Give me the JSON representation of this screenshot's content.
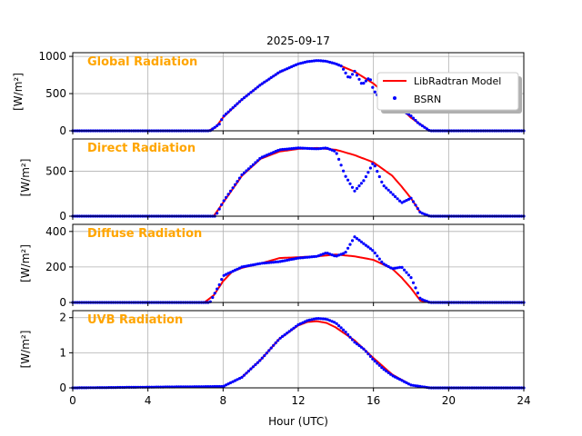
{
  "chart_data": {
    "title": "2025-09-17",
    "xlabel": "Hour (UTC)",
    "xlim": [
      0,
      24
    ],
    "xticks": [
      0,
      4,
      8,
      12,
      16,
      20,
      24
    ],
    "legend": {
      "placement": "top-right of first panel",
      "entries": [
        {
          "label": "LibRadtran Model",
          "color": "#ff0000",
          "style": "line"
        },
        {
          "label": "BSRN",
          "color": "#0000ff",
          "style": "dot"
        }
      ]
    },
    "panels": [
      {
        "type": "line+scatter",
        "label": "Global Radiation",
        "ylabel": "[W/m²]",
        "ylim": [
          0,
          1050
        ],
        "yticks": [
          0,
          500,
          1000
        ],
        "model": {
          "x": [
            0,
            7.2,
            7.6,
            8,
            9,
            10,
            11,
            12,
            12.5,
            13,
            13.5,
            14,
            15,
            16,
            17,
            18,
            19,
            24
          ],
          "y": [
            0,
            0,
            45,
            180,
            420,
            620,
            785,
            900,
            930,
            945,
            935,
            900,
            795,
            635,
            420,
            175,
            0,
            0
          ]
        },
        "bsrn": {
          "x": [
            0,
            7.3,
            7.8,
            8,
            9,
            10,
            11,
            12,
            12.5,
            13,
            13.5,
            14,
            14.3,
            14.7,
            15,
            15.4,
            15.8,
            16,
            16.5,
            17,
            17.5,
            18,
            18.4,
            19,
            24
          ],
          "y": [
            0,
            0,
            90,
            190,
            420,
            620,
            790,
            900,
            930,
            945,
            935,
            900,
            870,
            700,
            800,
            620,
            720,
            550,
            380,
            400,
            280,
            200,
            100,
            0,
            0
          ]
        }
      },
      {
        "type": "line+scatter",
        "label": "Direct Radiation",
        "ylabel": "[W/m²]",
        "ylim": [
          0,
          860
        ],
        "yticks": [
          0,
          500
        ],
        "model": {
          "x": [
            0,
            7.5,
            8,
            9,
            10,
            11,
            12,
            13,
            14,
            15,
            16,
            17,
            17.5,
            18,
            18.5,
            19,
            24
          ],
          "y": [
            0,
            0,
            150,
            450,
            640,
            720,
            750,
            760,
            740,
            680,
            600,
            450,
            330,
            200,
            40,
            0,
            0
          ]
        },
        "bsrn": {
          "x": [
            0,
            7.6,
            8,
            9,
            10,
            11,
            12,
            13,
            13.5,
            14,
            14.5,
            15,
            15.5,
            16,
            16.5,
            17,
            17.5,
            18,
            18.5,
            19,
            24
          ],
          "y": [
            0,
            0,
            160,
            460,
            650,
            740,
            760,
            750,
            760,
            720,
            450,
            280,
            400,
            600,
            350,
            250,
            150,
            200,
            40,
            0,
            0
          ]
        }
      },
      {
        "type": "line+scatter",
        "label": "Diffuse Radiation",
        "ylabel": "[W/m²]",
        "ylim": [
          0,
          440
        ],
        "yticks": [
          0,
          200,
          400
        ],
        "model": {
          "x": [
            0,
            7,
            7.5,
            8,
            8.5,
            9,
            10,
            11,
            12,
            13,
            14,
            15,
            16,
            17,
            17.5,
            18,
            18.5,
            19,
            24
          ],
          "y": [
            0,
            0,
            40,
            120,
            175,
            195,
            220,
            250,
            255,
            260,
            270,
            260,
            240,
            190,
            140,
            80,
            10,
            0,
            0
          ]
        },
        "bsrn": {
          "x": [
            0,
            7.3,
            7.8,
            8,
            9,
            10,
            11,
            12,
            13,
            13.5,
            14,
            14.5,
            15,
            15.5,
            16,
            16.5,
            17,
            17.5,
            18,
            18.5,
            19,
            24
          ],
          "y": [
            0,
            0,
            100,
            150,
            200,
            220,
            230,
            250,
            260,
            280,
            260,
            280,
            370,
            330,
            290,
            220,
            190,
            200,
            140,
            20,
            0,
            0
          ]
        }
      },
      {
        "type": "line+scatter",
        "label": "UVB Radiation",
        "ylabel": "[W/m²]",
        "ylim": [
          0,
          2.2
        ],
        "yticks": [
          0,
          1,
          2
        ],
        "model": {
          "x": [
            0,
            8,
            9,
            10,
            11,
            12,
            12.5,
            13,
            13.5,
            14,
            15,
            16,
            17,
            18,
            19,
            24
          ],
          "y": [
            0,
            0.04,
            0.3,
            0.8,
            1.4,
            1.78,
            1.88,
            1.9,
            1.85,
            1.72,
            1.35,
            0.85,
            0.38,
            0.08,
            0,
            0
          ]
        },
        "bsrn": {
          "x": [
            0,
            8,
            9,
            10,
            11,
            12,
            12.5,
            13,
            13.5,
            14,
            14.5,
            15,
            15.5,
            16,
            16.5,
            17,
            18,
            19,
            24
          ],
          "y": [
            0,
            0.04,
            0.3,
            0.8,
            1.4,
            1.8,
            1.92,
            1.98,
            1.96,
            1.85,
            1.6,
            1.3,
            1.1,
            0.8,
            0.55,
            0.35,
            0.08,
            0,
            0
          ]
        }
      }
    ]
  }
}
